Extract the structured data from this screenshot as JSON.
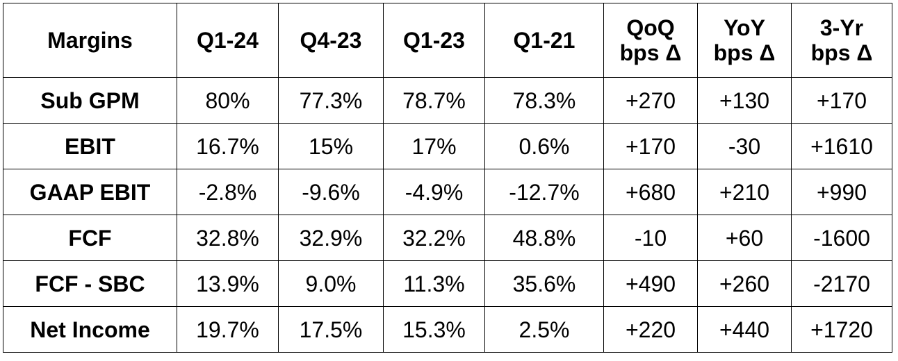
{
  "table": {
    "headers": [
      [
        "Margins"
      ],
      [
        "Q1-24"
      ],
      [
        "Q4-23"
      ],
      [
        "Q1-23"
      ],
      [
        "Q1-21"
      ],
      [
        "QoQ",
        "bps Δ"
      ],
      [
        "YoY",
        "bps Δ"
      ],
      [
        "3-Yr",
        "bps Δ"
      ]
    ],
    "rows": [
      [
        "Sub GPM",
        "80%",
        "77.3%",
        "78.7%",
        "78.3%",
        "+270",
        "+130",
        "+170"
      ],
      [
        "EBIT",
        "16.7%",
        "15%",
        "17%",
        "0.6%",
        "+170",
        "-30",
        "+1610"
      ],
      [
        "GAAP EBIT",
        "-2.8%",
        "-9.6%",
        "-4.9%",
        "-12.7%",
        "+680",
        "+210",
        "+990"
      ],
      [
        "FCF",
        "32.8%",
        "32.9%",
        "32.2%",
        "48.8%",
        "-10",
        "+60",
        "-1600"
      ],
      [
        "FCF - SBC",
        "13.9%",
        "9.0%",
        "11.3%",
        "35.6%",
        "+490",
        "+260",
        "-2170"
      ],
      [
        "Net Income",
        "19.7%",
        "17.5%",
        "15.3%",
        "2.5%",
        "+220",
        "+440",
        "+1720"
      ]
    ]
  }
}
